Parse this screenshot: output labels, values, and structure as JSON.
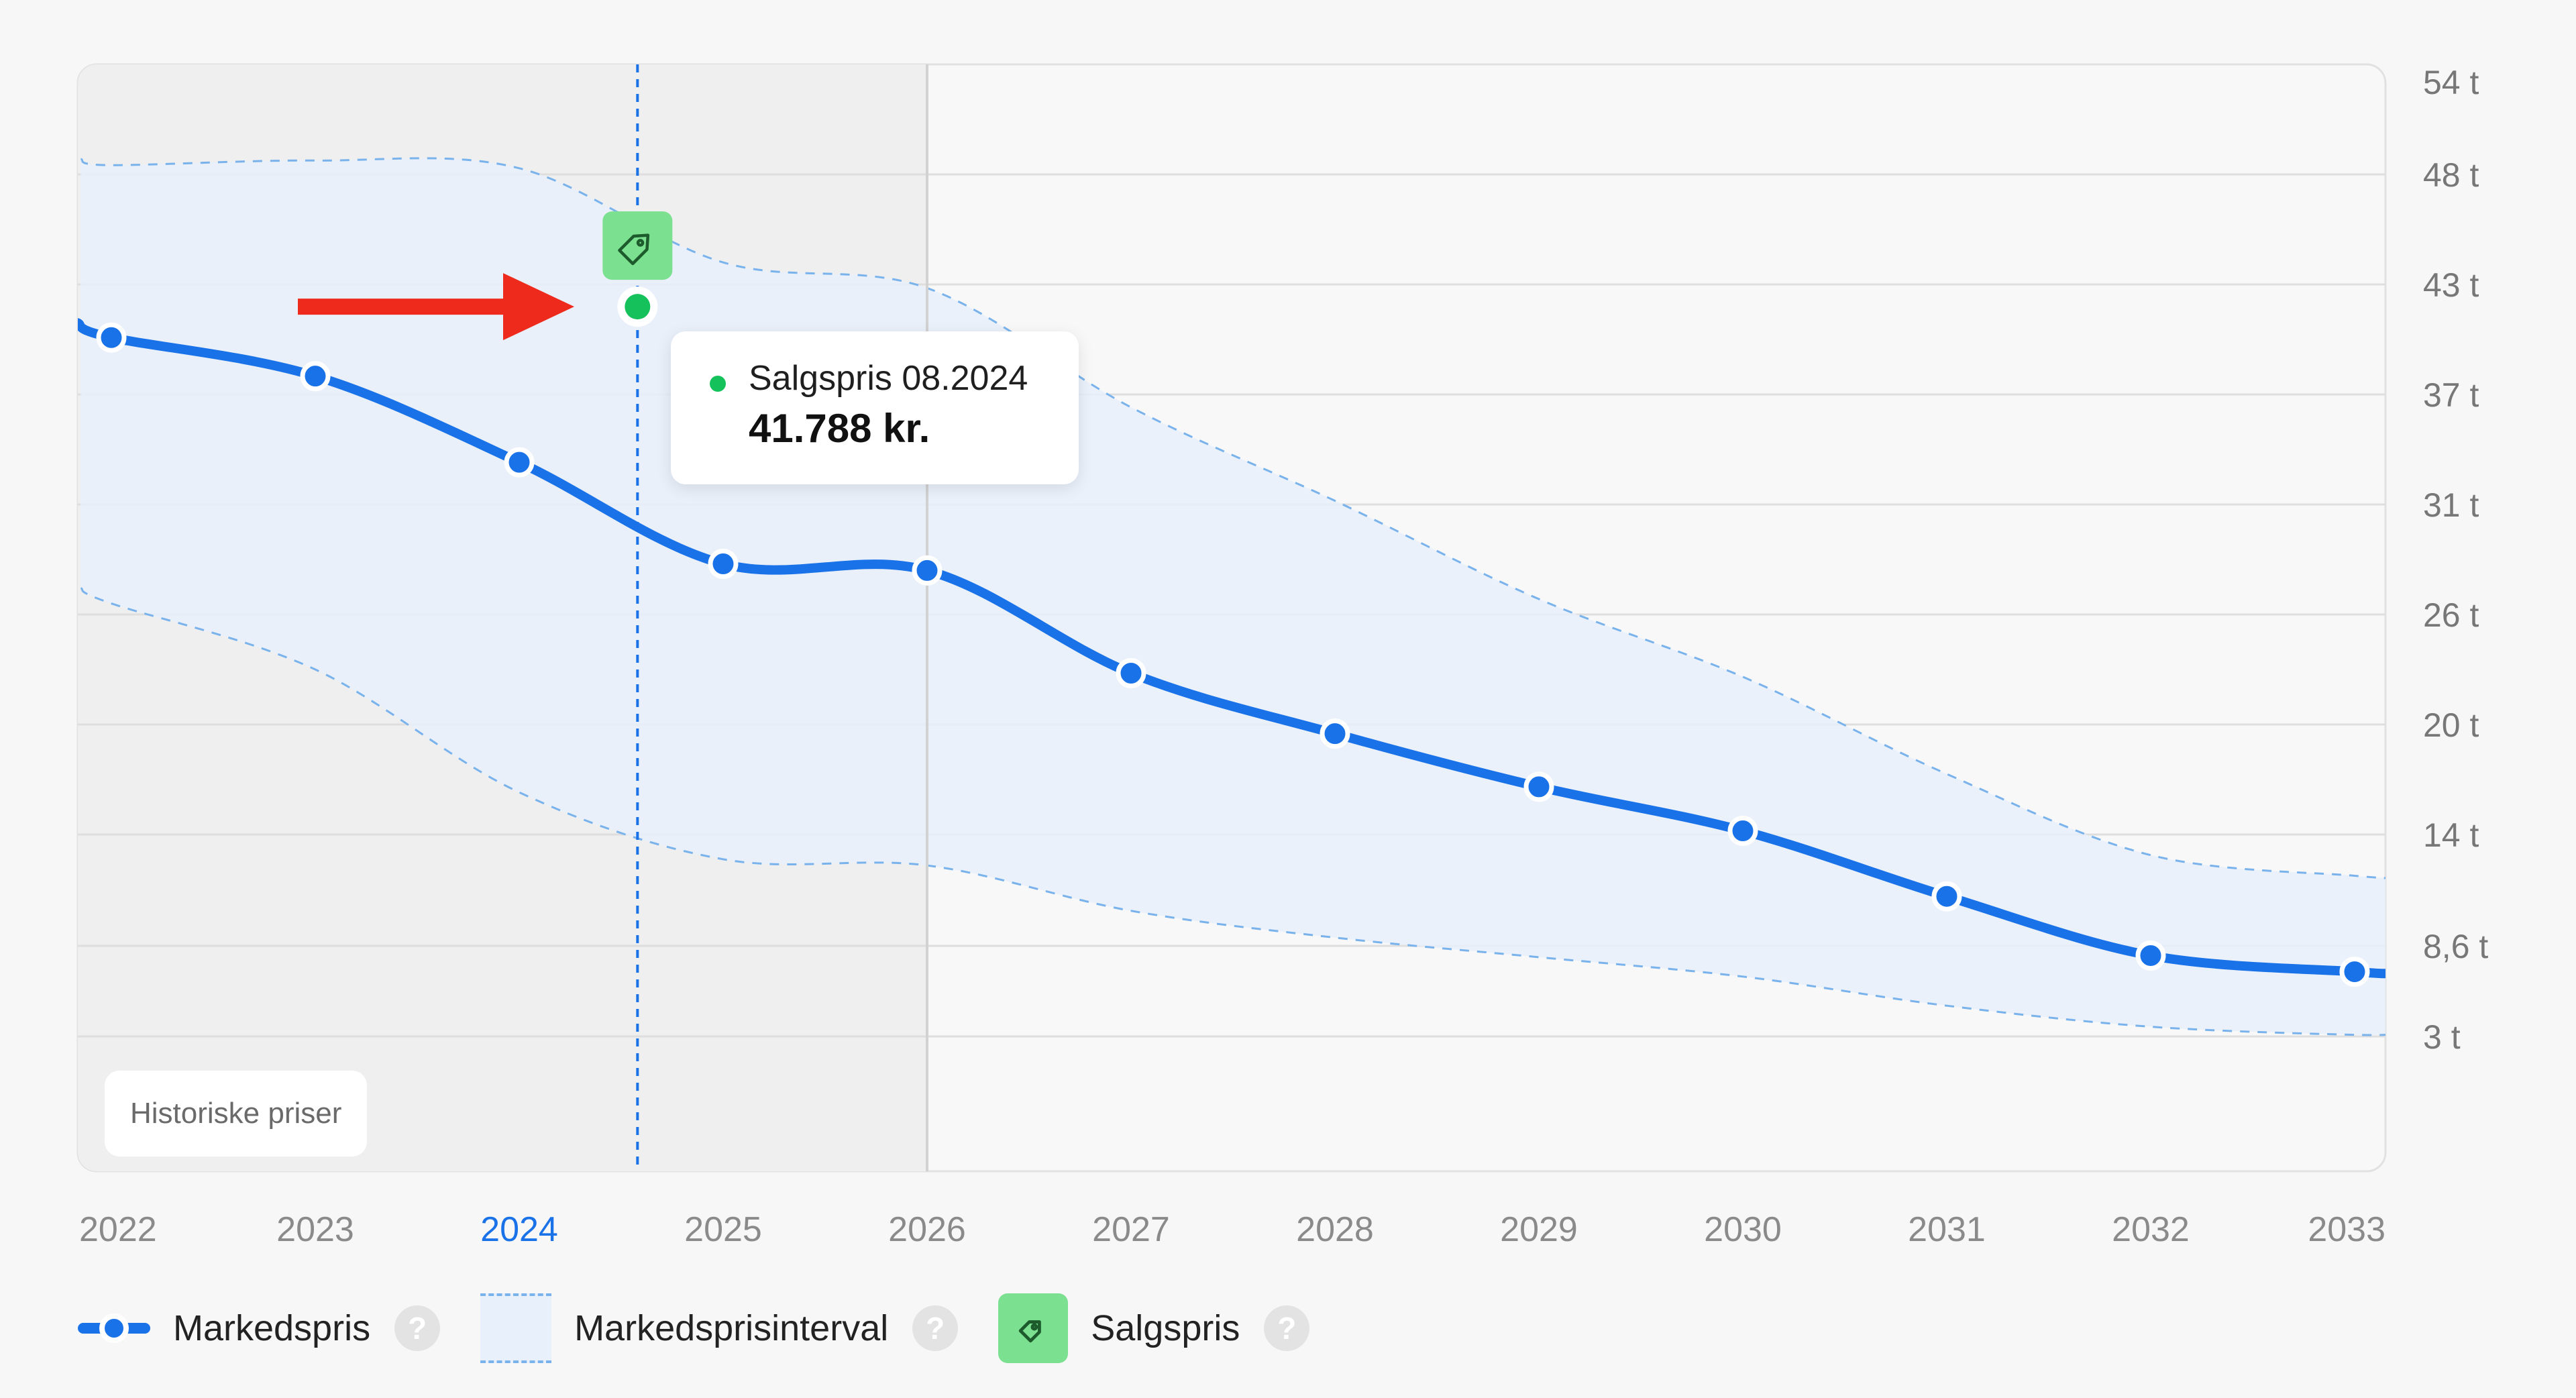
{
  "chart_data": {
    "type": "line",
    "x_labels": [
      "2022",
      "2023",
      "2024",
      "2025",
      "2026",
      "2027",
      "2028",
      "2029",
      "2030",
      "2031",
      "2032",
      "2033"
    ],
    "highlight_x_label": "2024",
    "y_ticks": [
      {
        "label": "54 t",
        "value": 54
      },
      {
        "label": "48 t",
        "value": 48
      },
      {
        "label": "43 t",
        "value": 43
      },
      {
        "label": "37 t",
        "value": 37
      },
      {
        "label": "31 t",
        "value": 31
      },
      {
        "label": "26 t",
        "value": 26
      },
      {
        "label": "20 t",
        "value": 20
      },
      {
        "label": "14 t",
        "value": 14
      },
      {
        "label": "8,6 t",
        "value": 8.6
      },
      {
        "label": "3 t",
        "value": 3
      }
    ],
    "series": [
      {
        "name": "Markedspris",
        "color": "#1a72e8",
        "points": [
          {
            "x": 2022.0,
            "y": 40.1
          },
          {
            "x": 2023.0,
            "y": 38.0
          },
          {
            "x": 2024.0,
            "y": 33.3
          },
          {
            "x": 2025.0,
            "y": 28.3
          },
          {
            "x": 2026.0,
            "y": 28.0
          },
          {
            "x": 2027.0,
            "y": 22.8
          },
          {
            "x": 2028.0,
            "y": 19.5
          },
          {
            "x": 2029.0,
            "y": 16.6
          },
          {
            "x": 2030.0,
            "y": 14.2
          },
          {
            "x": 2031.0,
            "y": 11.0
          },
          {
            "x": 2032.0,
            "y": 8.0
          },
          {
            "x": 2033.0,
            "y": 7.0
          }
        ]
      }
    ],
    "interval": {
      "name": "Markedsprisinterval",
      "upper": [
        [
          2021.85,
          49.0
        ],
        [
          2022.0,
          48.6
        ],
        [
          2023.0,
          48.9
        ],
        [
          2024.0,
          48.4
        ],
        [
          2025.0,
          44.0
        ],
        [
          2026.0,
          42.8
        ],
        [
          2027.0,
          36.3
        ],
        [
          2028.0,
          31.2
        ],
        [
          2029.0,
          26.7
        ],
        [
          2030.0,
          22.6
        ],
        [
          2031.0,
          17.3
        ],
        [
          2032.0,
          13.0
        ],
        [
          2033.0,
          12.0
        ],
        [
          2033.2,
          11.9
        ]
      ],
      "lower": [
        [
          2021.85,
          27.2
        ],
        [
          2022.0,
          26.5
        ],
        [
          2023.0,
          23.0
        ],
        [
          2024.0,
          16.3
        ],
        [
          2025.0,
          12.8
        ],
        [
          2026.0,
          12.5
        ],
        [
          2027.0,
          10.3
        ],
        [
          2028.0,
          9.0
        ],
        [
          2029.0,
          7.9
        ],
        [
          2030.0,
          6.7
        ],
        [
          2031.0,
          4.9
        ],
        [
          2032.0,
          3.6
        ],
        [
          2033.0,
          3.1
        ],
        [
          2033.2,
          3.2
        ]
      ]
    },
    "sale_point": {
      "label": "Salgspris 08.2024",
      "x": 2024.58,
      "y": 41.788,
      "value_text": "41.788 kr.",
      "color": "#14c15a"
    },
    "historic_until": 2026.0,
    "grid": true,
    "legend_position": "bottom-left"
  },
  "tooltip": {
    "label": "Salgspris 08.2024",
    "value": "41.788 kr."
  },
  "historic_badge": "Historiske priser",
  "legend": {
    "items": [
      {
        "label": "Markedspris",
        "help": "?"
      },
      {
        "label": "Markedsprisinterval",
        "help": "?"
      },
      {
        "label": "Salgspris",
        "help": "?"
      }
    ]
  },
  "colors": {
    "line": "#1a72e8",
    "band": "#e8f0fb",
    "band_border": "#7ab3ec",
    "historic_bg": "#efefef",
    "sale_dot": "#14c15a",
    "tag_bg": "#7be08f",
    "arrow": "#ee2a1c",
    "highlight_label": "#1a72e8"
  },
  "icons": {
    "tag": "price-tag-icon",
    "arrow": "red-arrow",
    "help": "question-icon"
  }
}
